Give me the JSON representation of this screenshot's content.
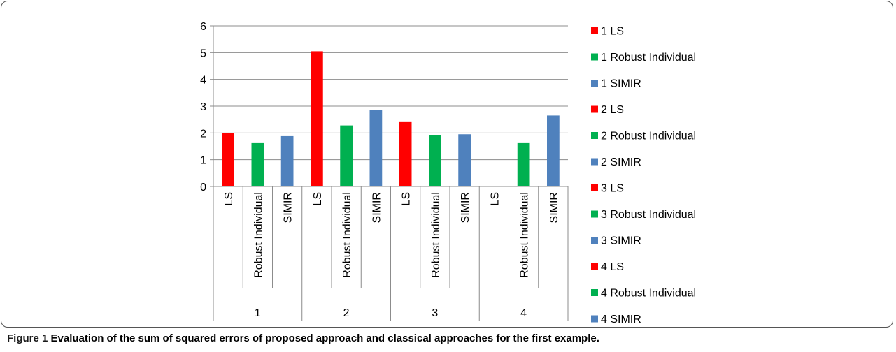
{
  "caption": {
    "label": "Figure 1",
    "text": "Evaluation of the sum of squared errors of proposed approach and classical approaches for the first example."
  },
  "chart_data": {
    "type": "bar",
    "groups": [
      "1",
      "2",
      "3",
      "4"
    ],
    "categories": [
      "LS",
      "Robust Individual",
      "SIMIR"
    ],
    "ylim": [
      0,
      6
    ],
    "yticks": [
      0,
      1,
      2,
      3,
      4,
      5,
      6
    ],
    "grid": true,
    "legend_position": "right",
    "colors": {
      "LS": "#ff0000",
      "Robust Individual": "#00b050",
      "SIMIR": "#4f81bd"
    },
    "series": [
      {
        "name": "1 LS",
        "group": "1",
        "category": "LS",
        "value": 2.0
      },
      {
        "name": "1 Robust Individual",
        "group": "1",
        "category": "Robust Individual",
        "value": 1.62
      },
      {
        "name": "1 SIMIR",
        "group": "1",
        "category": "SIMIR",
        "value": 1.88
      },
      {
        "name": "2 LS",
        "group": "2",
        "category": "LS",
        "value": 5.05
      },
      {
        "name": "2 Robust Individual",
        "group": "2",
        "category": "Robust Individual",
        "value": 2.28
      },
      {
        "name": "2 SIMIR",
        "group": "2",
        "category": "SIMIR",
        "value": 2.85
      },
      {
        "name": "3 LS",
        "group": "3",
        "category": "LS",
        "value": 2.43
      },
      {
        "name": "3 Robust Individual",
        "group": "3",
        "category": "Robust Individual",
        "value": 1.92
      },
      {
        "name": "3 SIMIR",
        "group": "3",
        "category": "SIMIR",
        "value": 1.95
      },
      {
        "name": "4 LS",
        "group": "4",
        "category": "LS",
        "value": 0
      },
      {
        "name": "4 Robust Individual",
        "group": "4",
        "category": "Robust Individual",
        "value": 1.62
      },
      {
        "name": "4 SIMIR",
        "group": "4",
        "category": "SIMIR",
        "value": 2.65
      }
    ]
  }
}
